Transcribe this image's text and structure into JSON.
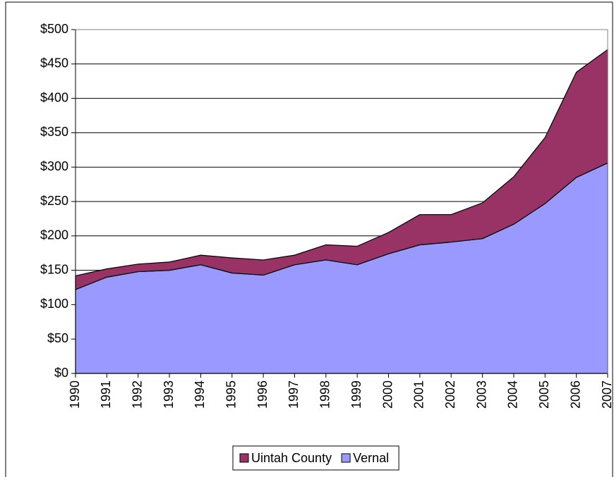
{
  "chart_data": {
    "type": "stacked_area",
    "categories": [
      "1990",
      "1991",
      "1992",
      "1993",
      "1994",
      "1995",
      "1996",
      "1997",
      "1998",
      "1999",
      "2000",
      "2001",
      "2002",
      "2003",
      "2004",
      "2005",
      "2006",
      "2007"
    ],
    "series": [
      {
        "name": "Uintah County",
        "color": "#993366",
        "values": [
          20,
          12,
          11,
          12,
          14,
          22,
          22,
          14,
          22,
          27,
          31,
          44,
          40,
          52,
          69,
          96,
          153,
          165
        ]
      },
      {
        "name": "Vernal",
        "color": "#9999ff",
        "values": [
          122,
          140,
          148,
          150,
          158,
          146,
          143,
          158,
          165,
          158,
          174,
          187,
          191,
          196,
          217,
          247,
          285,
          306
        ]
      }
    ],
    "ylim": [
      0,
      500
    ],
    "yticks": [
      {
        "value": 0,
        "label": "$0"
      },
      {
        "value": 50,
        "label": "$50"
      },
      {
        "value": 100,
        "label": "$100"
      },
      {
        "value": 150,
        "label": "$150"
      },
      {
        "value": 200,
        "label": "$200"
      },
      {
        "value": 250,
        "label": "$250"
      },
      {
        "value": 300,
        "label": "$300"
      },
      {
        "value": 350,
        "label": "$350"
      },
      {
        "value": 400,
        "label": "$400"
      },
      {
        "value": 450,
        "label": "$450"
      },
      {
        "value": 500,
        "label": "$500"
      }
    ],
    "grid": true
  }
}
